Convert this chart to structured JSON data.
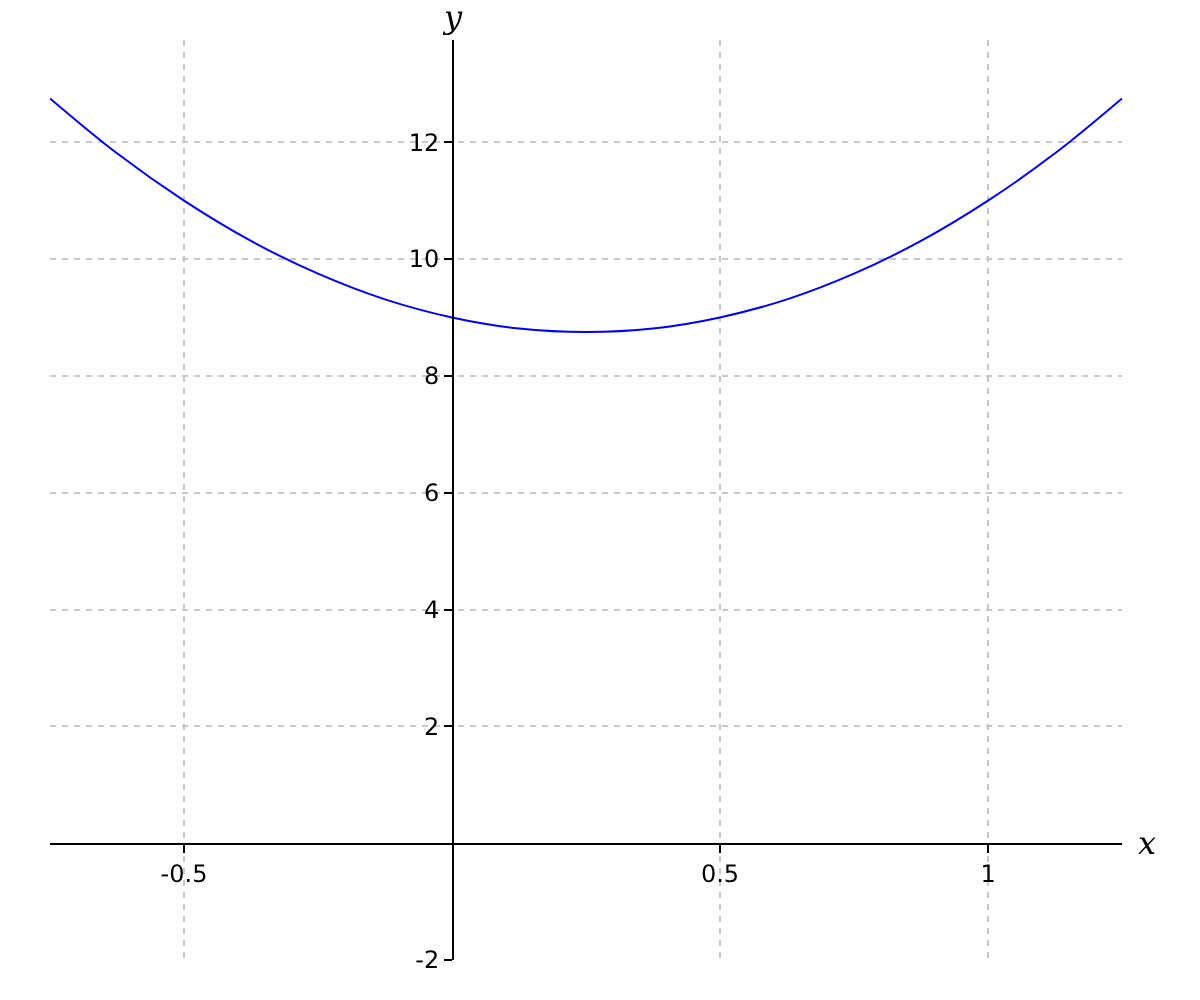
{
  "chart_data": {
    "type": "line",
    "xlabel": "x",
    "ylabel": "y",
    "x": [
      -0.75,
      -0.625,
      -0.5,
      -0.375,
      -0.25,
      -0.125,
      0,
      0.125,
      0.25,
      0.375,
      0.5,
      0.625,
      0.75,
      0.875,
      1,
      1.125,
      1.25
    ],
    "series": [
      {
        "color": "#0000ff",
        "values": [
          12.75,
          11.81,
          11,
          10.31,
          9.75,
          9.31,
          9,
          8.81,
          8.75,
          8.81,
          9,
          9.31,
          9.75,
          10.31,
          11,
          11.81,
          12.75
        ]
      }
    ],
    "xlim": [
      -0.75,
      1.25
    ],
    "ylim": [
      -2,
      13.75
    ],
    "xticks": [
      -0.5,
      0.5,
      1
    ],
    "yticks": [
      -2,
      2,
      4,
      6,
      8,
      10,
      12
    ],
    "grid": true,
    "marker": "none",
    "line_style": "solid"
  }
}
